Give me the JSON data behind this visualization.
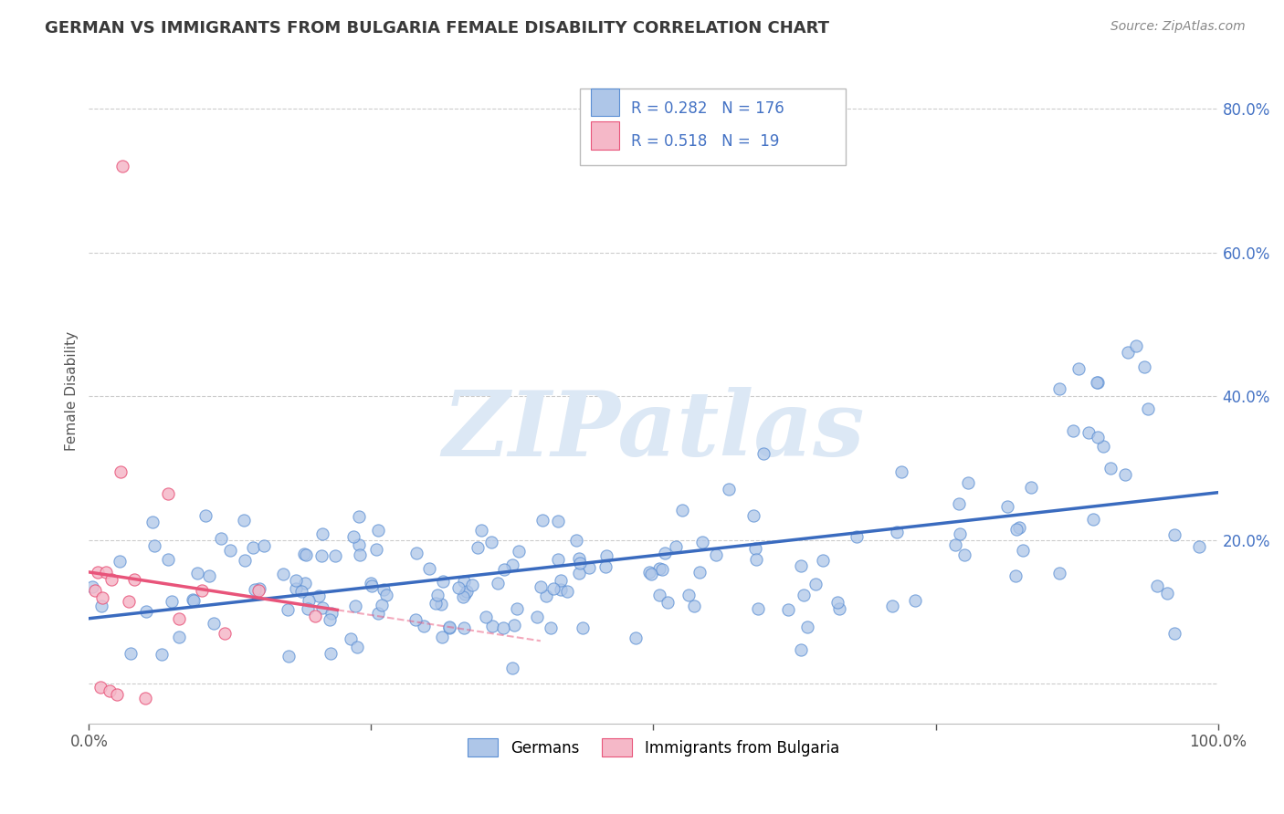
{
  "title": "GERMAN VS IMMIGRANTS FROM BULGARIA FEMALE DISABILITY CORRELATION CHART",
  "source": "Source: ZipAtlas.com",
  "ylabel": "Female Disability",
  "xlim": [
    0,
    1
  ],
  "ylim": [
    -0.055,
    0.87
  ],
  "blue_color": "#aec6e8",
  "blue_edge_color": "#5b8fd4",
  "pink_color": "#f5b8c8",
  "pink_edge_color": "#e8547a",
  "blue_line_color": "#3a6bbf",
  "pink_line_color": "#e8547a",
  "title_color": "#3a3a3a",
  "source_color": "#888888",
  "ylabel_color": "#555555",
  "ytick_color": "#4472c4",
  "xtick_color": "#555555",
  "watermark_text": "ZIPatlas",
  "watermark_color": "#dce8f5",
  "grid_color": "#cccccc",
  "legend_box_color": "#cccccc",
  "legend_text_color": "#4472c4",
  "legend_black_text_color": "#333333"
}
